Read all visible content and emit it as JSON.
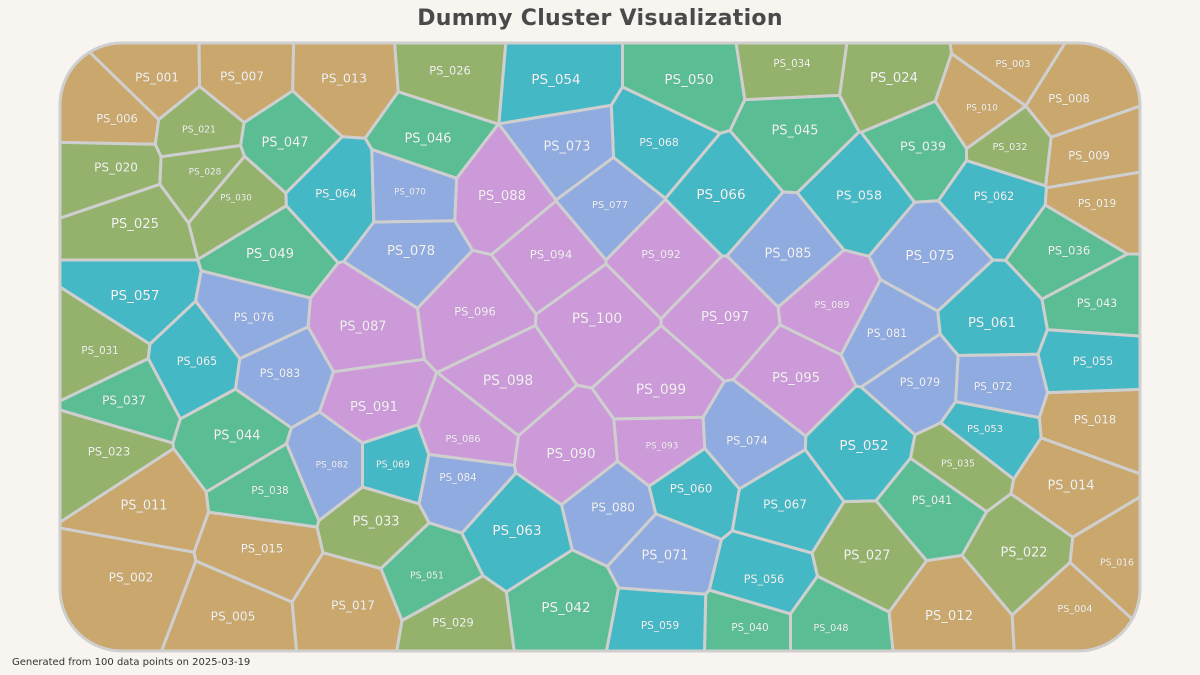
{
  "title": "Dummy Cluster Visualization",
  "footnote": "Generated from 100 data points on 2025-03-19",
  "colors": {
    "tan": "#c9a76d",
    "olive": "#94b26c",
    "green": "#5bbd94",
    "teal": "#45b8c6",
    "blue": "#90abe0",
    "purple": "#cc99d9",
    "border": "#cfcfcf",
    "background": "#f8f4ef"
  },
  "chart_data": {
    "type": "voronoi-treemap",
    "title": "Dummy Cluster Visualization",
    "cells": [
      {
        "label": "PS_001",
        "group": "tan"
      },
      {
        "label": "PS_002",
        "group": "tan"
      },
      {
        "label": "PS_003",
        "group": "tan"
      },
      {
        "label": "PS_004",
        "group": "tan"
      },
      {
        "label": "PS_005",
        "group": "tan"
      },
      {
        "label": "PS_006",
        "group": "tan"
      },
      {
        "label": "PS_007",
        "group": "tan"
      },
      {
        "label": "PS_008",
        "group": "tan"
      },
      {
        "label": "PS_009",
        "group": "tan"
      },
      {
        "label": "PS_010",
        "group": "tan"
      },
      {
        "label": "PS_011",
        "group": "tan"
      },
      {
        "label": "PS_012",
        "group": "tan"
      },
      {
        "label": "PS_013",
        "group": "tan"
      },
      {
        "label": "PS_014",
        "group": "tan"
      },
      {
        "label": "PS_015",
        "group": "tan"
      },
      {
        "label": "PS_016",
        "group": "tan"
      },
      {
        "label": "PS_017",
        "group": "tan"
      },
      {
        "label": "PS_018",
        "group": "tan"
      },
      {
        "label": "PS_019",
        "group": "tan"
      },
      {
        "label": "PS_020",
        "group": "olive"
      },
      {
        "label": "PS_021",
        "group": "olive"
      },
      {
        "label": "PS_022",
        "group": "olive"
      },
      {
        "label": "PS_023",
        "group": "olive"
      },
      {
        "label": "PS_024",
        "group": "olive"
      },
      {
        "label": "PS_025",
        "group": "olive"
      },
      {
        "label": "PS_026",
        "group": "olive"
      },
      {
        "label": "PS_027",
        "group": "olive"
      },
      {
        "label": "PS_028",
        "group": "olive"
      },
      {
        "label": "PS_029",
        "group": "olive"
      },
      {
        "label": "PS_030",
        "group": "olive"
      },
      {
        "label": "PS_031",
        "group": "olive"
      },
      {
        "label": "PS_032",
        "group": "olive"
      },
      {
        "label": "PS_033",
        "group": "olive"
      },
      {
        "label": "PS_034",
        "group": "olive"
      },
      {
        "label": "PS_035",
        "group": "olive"
      },
      {
        "label": "PS_036",
        "group": "green"
      },
      {
        "label": "PS_037",
        "group": "green"
      },
      {
        "label": "PS_038",
        "group": "green"
      },
      {
        "label": "PS_039",
        "group": "green"
      },
      {
        "label": "PS_040",
        "group": "green"
      },
      {
        "label": "PS_041",
        "group": "green"
      },
      {
        "label": "PS_042",
        "group": "green"
      },
      {
        "label": "PS_043",
        "group": "green"
      },
      {
        "label": "PS_044",
        "group": "green"
      },
      {
        "label": "PS_045",
        "group": "green"
      },
      {
        "label": "PS_046",
        "group": "green"
      },
      {
        "label": "PS_047",
        "group": "green"
      },
      {
        "label": "PS_048",
        "group": "green"
      },
      {
        "label": "PS_049",
        "group": "green"
      },
      {
        "label": "PS_050",
        "group": "green"
      },
      {
        "label": "PS_051",
        "group": "green"
      },
      {
        "label": "PS_052",
        "group": "teal"
      },
      {
        "label": "PS_053",
        "group": "teal"
      },
      {
        "label": "PS_054",
        "group": "teal"
      },
      {
        "label": "PS_055",
        "group": "teal"
      },
      {
        "label": "PS_056",
        "group": "teal"
      },
      {
        "label": "PS_057",
        "group": "teal"
      },
      {
        "label": "PS_058",
        "group": "teal"
      },
      {
        "label": "PS_059",
        "group": "teal"
      },
      {
        "label": "PS_060",
        "group": "teal"
      },
      {
        "label": "PS_061",
        "group": "teal"
      },
      {
        "label": "PS_062",
        "group": "teal"
      },
      {
        "label": "PS_063",
        "group": "teal"
      },
      {
        "label": "PS_064",
        "group": "teal"
      },
      {
        "label": "PS_065",
        "group": "teal"
      },
      {
        "label": "PS_066",
        "group": "teal"
      },
      {
        "label": "PS_067",
        "group": "teal"
      },
      {
        "label": "PS_068",
        "group": "teal"
      },
      {
        "label": "PS_069",
        "group": "teal"
      },
      {
        "label": "PS_070",
        "group": "blue"
      },
      {
        "label": "PS_071",
        "group": "blue"
      },
      {
        "label": "PS_072",
        "group": "blue"
      },
      {
        "label": "PS_073",
        "group": "blue"
      },
      {
        "label": "PS_074",
        "group": "blue"
      },
      {
        "label": "PS_075",
        "group": "blue"
      },
      {
        "label": "PS_076",
        "group": "blue"
      },
      {
        "label": "PS_077",
        "group": "blue"
      },
      {
        "label": "PS_078",
        "group": "blue"
      },
      {
        "label": "PS_079",
        "group": "blue"
      },
      {
        "label": "PS_080",
        "group": "blue"
      },
      {
        "label": "PS_081",
        "group": "blue"
      },
      {
        "label": "PS_082",
        "group": "blue"
      },
      {
        "label": "PS_083",
        "group": "blue"
      },
      {
        "label": "PS_084",
        "group": "blue"
      },
      {
        "label": "PS_085",
        "group": "blue"
      },
      {
        "label": "PS_086",
        "group": "purple"
      },
      {
        "label": "PS_087",
        "group": "purple"
      },
      {
        "label": "PS_088",
        "group": "purple"
      },
      {
        "label": "PS_089",
        "group": "purple"
      },
      {
        "label": "PS_090",
        "group": "purple"
      },
      {
        "label": "PS_091",
        "group": "purple"
      },
      {
        "label": "PS_092",
        "group": "purple"
      },
      {
        "label": "PS_093",
        "group": "purple"
      },
      {
        "label": "PS_094",
        "group": "purple"
      },
      {
        "label": "PS_095",
        "group": "purple"
      },
      {
        "label": "PS_096",
        "group": "purple"
      },
      {
        "label": "PS_097",
        "group": "purple"
      },
      {
        "label": "PS_098",
        "group": "purple"
      },
      {
        "label": "PS_099",
        "group": "purple"
      },
      {
        "label": "PS_100",
        "group": "purple"
      }
    ]
  }
}
